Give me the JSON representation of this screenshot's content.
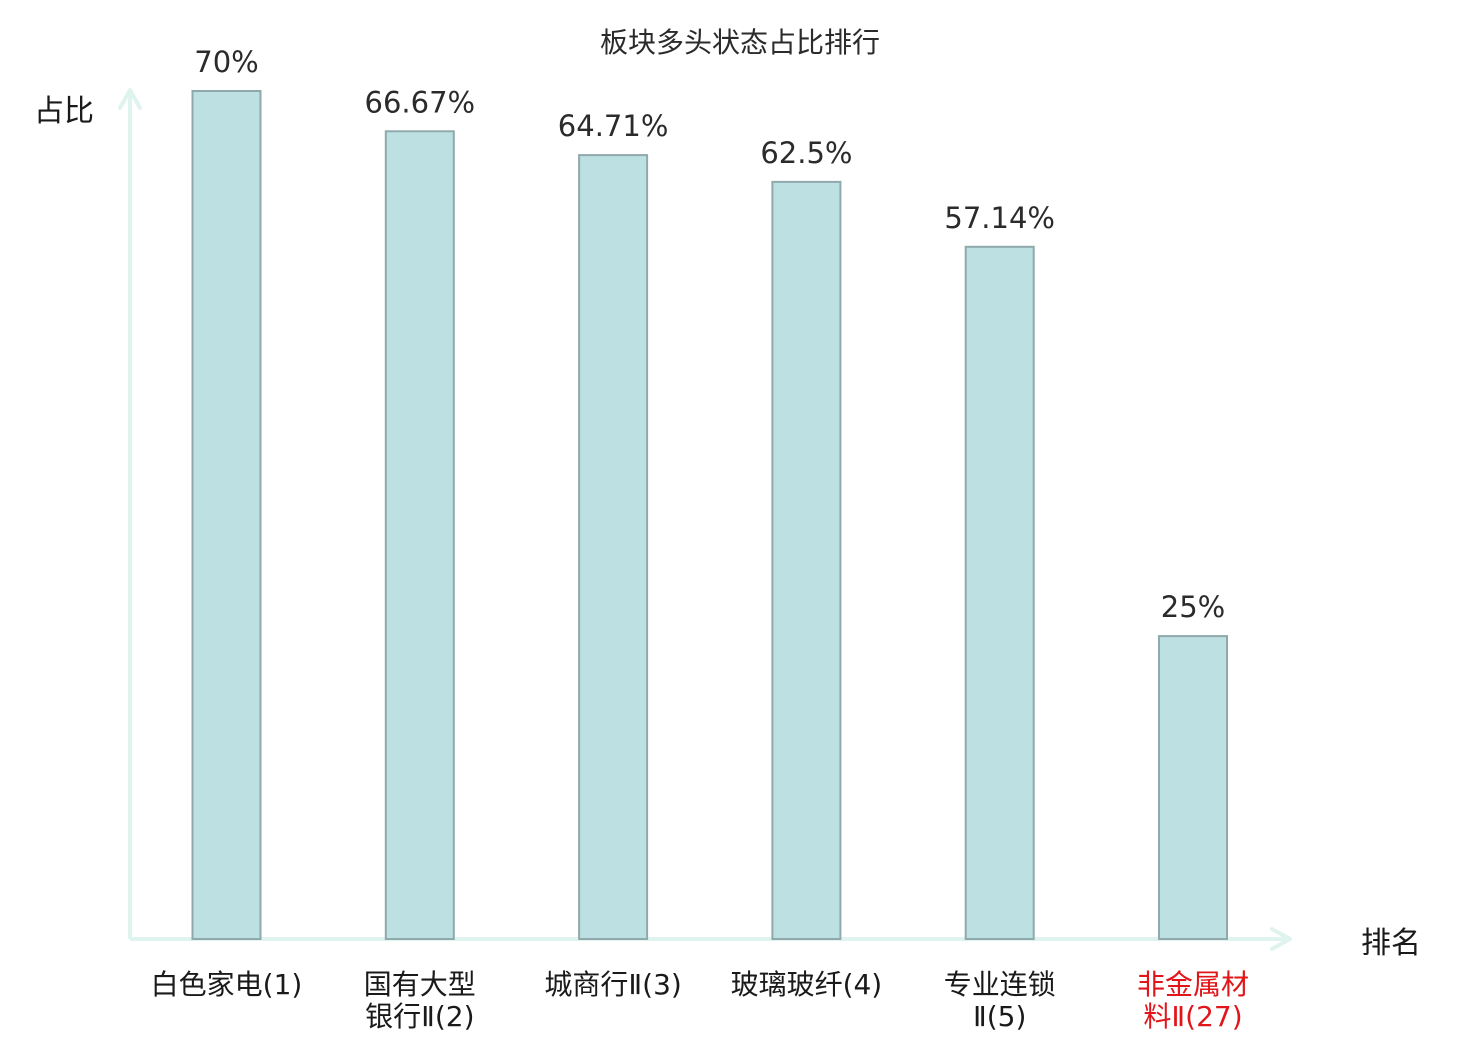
{
  "chart_data": {
    "type": "bar",
    "title": "板块多头状态占比排行",
    "ylabel": "占比",
    "xlabel": "排名",
    "categories": [
      [
        "白色家电(1)"
      ],
      [
        "国有大型",
        "银行Ⅱ(2)"
      ],
      [
        "城商行Ⅱ(3)"
      ],
      [
        "玻璃玻纤(4)"
      ],
      [
        "专业连锁",
        "Ⅱ(5)"
      ],
      [
        "非金属材",
        "料Ⅱ(27)"
      ]
    ],
    "values": [
      70,
      66.67,
      64.71,
      62.5,
      57.14,
      25
    ],
    "value_labels": [
      "70%",
      "66.67%",
      "64.71%",
      "62.5%",
      "57.14%",
      "25%"
    ],
    "ylim": [
      0,
      70
    ],
    "highlight_index": 5,
    "grid": false,
    "legend": "none",
    "colors": {
      "bar_fill": "#bde0e3",
      "bar_stroke": "#8fa9ac",
      "axis": "#dff3ef",
      "text": "#2b2b2b",
      "label": "#1a1a1a",
      "highlight": "#e0161b"
    }
  }
}
